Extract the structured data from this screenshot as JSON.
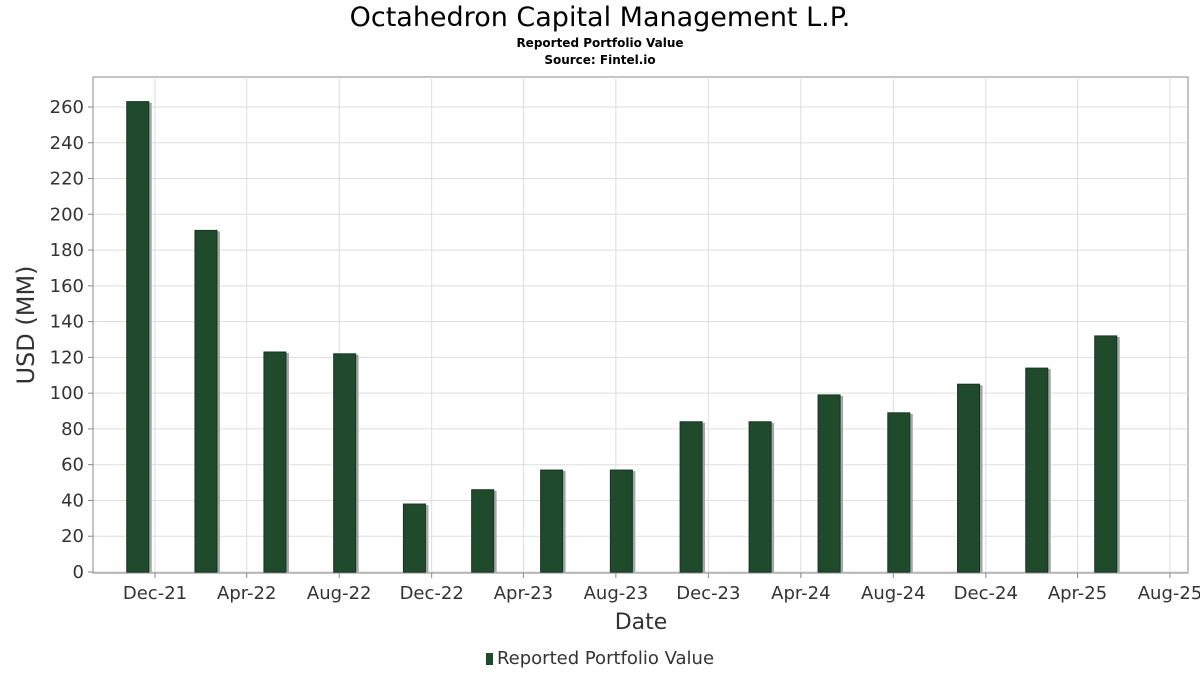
{
  "title": "Octahedron Capital Management L.P.",
  "subtitle": "Reported Portfolio Value",
  "source": "Source: Fintel.io",
  "chart_data": {
    "type": "bar",
    "xlabel": "Date",
    "ylabel": "USD (MM)",
    "ylim": [
      0,
      275
    ],
    "yticks": [
      0,
      20,
      40,
      60,
      80,
      100,
      120,
      140,
      160,
      180,
      200,
      220,
      240,
      260
    ],
    "xtick_labels": [
      "Dec-21",
      "Apr-22",
      "Aug-22",
      "Dec-22",
      "Apr-23",
      "Aug-23",
      "Dec-23",
      "Apr-24",
      "Aug-24",
      "Dec-24",
      "Apr-25",
      "Aug-25"
    ],
    "grid": true,
    "legend": "bottom",
    "series": [
      {
        "name": "Reported Portfolio Value",
        "color": "#1f4a2b",
        "points": [
          {
            "x": "2021-12-31",
            "y": 263
          },
          {
            "x": "2022-03-31",
            "y": 191
          },
          {
            "x": "2022-06-30",
            "y": 123
          },
          {
            "x": "2022-09-30",
            "y": 122
          },
          {
            "x": "2022-12-31",
            "y": 38
          },
          {
            "x": "2023-03-31",
            "y": 46
          },
          {
            "x": "2023-06-30",
            "y": 57
          },
          {
            "x": "2023-09-30",
            "y": 57
          },
          {
            "x": "2023-12-31",
            "y": 84
          },
          {
            "x": "2024-03-31",
            "y": 84
          },
          {
            "x": "2024-06-30",
            "y": 99
          },
          {
            "x": "2024-09-30",
            "y": 89
          },
          {
            "x": "2024-12-31",
            "y": 105
          },
          {
            "x": "2025-03-31",
            "y": 114
          },
          {
            "x": "2025-06-30",
            "y": 132
          }
        ]
      }
    ]
  }
}
